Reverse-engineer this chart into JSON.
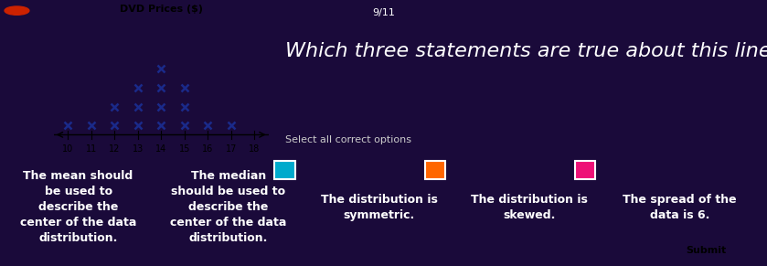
{
  "bg_color": "#1a0a3a",
  "line_plot": {
    "title": "DVD Prices ($)",
    "x_min": 10,
    "x_max": 18,
    "counts": {
      "10": 1,
      "11": 1,
      "12": 2,
      "13": 3,
      "14": 4,
      "15": 3,
      "16": 1,
      "17": 1,
      "18": 0
    },
    "marker_color": "#1a2a8a",
    "plot_bg": "#f0f0f0",
    "tick_fontsize": 7,
    "title_fontsize": 8
  },
  "question_text": "Which three statements are true about this line plot?",
  "question_color": "#ffffff",
  "question_fontsize": 16,
  "select_text": "Select all correct options",
  "select_fontsize": 8,
  "select_color": "#cccccc",
  "top_text": "9/11",
  "buttons": [
    {
      "text": "The mean should\nbe used to\ndescribe the\ncenter of the data\ndistribution.",
      "bg_color": "#2255dd",
      "text_color": "#ffffff",
      "fontsize": 9,
      "checkbox": false
    },
    {
      "text": "The median\nshould be used to\ndescribe the\ncenter of the data\ndistribution.",
      "bg_color": "#00aacc",
      "text_color": "#ffffff",
      "fontsize": 9,
      "checkbox": true
    },
    {
      "text": "The distribution is\nsymmetric.",
      "bg_color": "#ff6600",
      "text_color": "#ffffff",
      "fontsize": 9,
      "checkbox": true
    },
    {
      "text": "The distribution is\nskewed.",
      "bg_color": "#ee1177",
      "text_color": "#ffffff",
      "fontsize": 9,
      "checkbox": true
    },
    {
      "text": "The spread of the\ndata is 6.",
      "bg_color": "#7733bb",
      "text_color": "#ffffff",
      "fontsize": 9,
      "checkbox": false
    }
  ],
  "submit_text": "Submit",
  "submit_bg": "#aaaaaa",
  "submit_fontsize": 8
}
